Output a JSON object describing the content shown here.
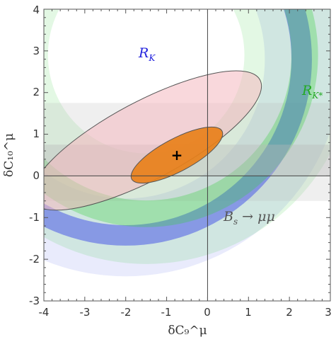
{
  "chart_data": {
    "type": "contour",
    "title": "",
    "xlabel": "δC₉^μ",
    "ylabel": "δC₁₀^μ",
    "xlim": [
      -4,
      3
    ],
    "ylim": [
      -3,
      4
    ],
    "x_ticks": [
      "-4",
      "-3",
      "-2",
      "-1",
      "0",
      "1",
      "2",
      "3"
    ],
    "y_ticks": [
      "-3",
      "-2",
      "-1",
      "0",
      "1",
      "2",
      "3",
      "4"
    ],
    "grid": false,
    "reference_lines": {
      "x": 0,
      "y": 0
    },
    "best_fit_point": {
      "x": -0.75,
      "y": 0.5
    },
    "regions": [
      {
        "name": "R_K",
        "label": "R_K",
        "color": "#4a5ae8",
        "shape": "annulus",
        "center": {
          "x": -2.0,
          "y": 2.8
        },
        "radius_1sigma": [
          4.05,
          4.55
        ],
        "radius_2sigma": [
          3.4,
          5.3
        ]
      },
      {
        "name": "R_K*",
        "label": "R_K*",
        "color": "#3cd040",
        "shape": "annulus",
        "center": {
          "x": -1.5,
          "y": 2.9
        },
        "radius_1sigma": [
          3.55,
          4.2
        ],
        "radius_2sigma": [
          2.4,
          5.1
        ]
      },
      {
        "name": "Bs_to_mumu",
        "label": "B_s → μμ",
        "color": "#b8b8b8",
        "shape": "horizontal_band",
        "band_1sigma": [
          0.0,
          0.75
        ],
        "band_2sigma": [
          -0.6,
          1.75
        ]
      },
      {
        "name": "combined_2sigma",
        "color": "#f4b8c0",
        "shape": "ellipse",
        "center": {
          "x": -1.5,
          "y": 0.85
        },
        "semi_axes": [
          3.15,
          0.95
        ],
        "angle_deg": 28
      },
      {
        "name": "combined_1sigma",
        "color": "#e8801a",
        "shape": "ellipse",
        "center": {
          "x": -0.75,
          "y": 0.5
        },
        "semi_axes": [
          1.25,
          0.4
        ],
        "angle_deg": 28
      }
    ],
    "labels": {
      "rk": {
        "base": "R",
        "sub": "K"
      },
      "rkstar": {
        "base": "R",
        "sub": "K*"
      },
      "bs": {
        "base": "B",
        "sub": "s",
        "rest": " → μμ"
      },
      "best_fit_marker": "+"
    }
  }
}
